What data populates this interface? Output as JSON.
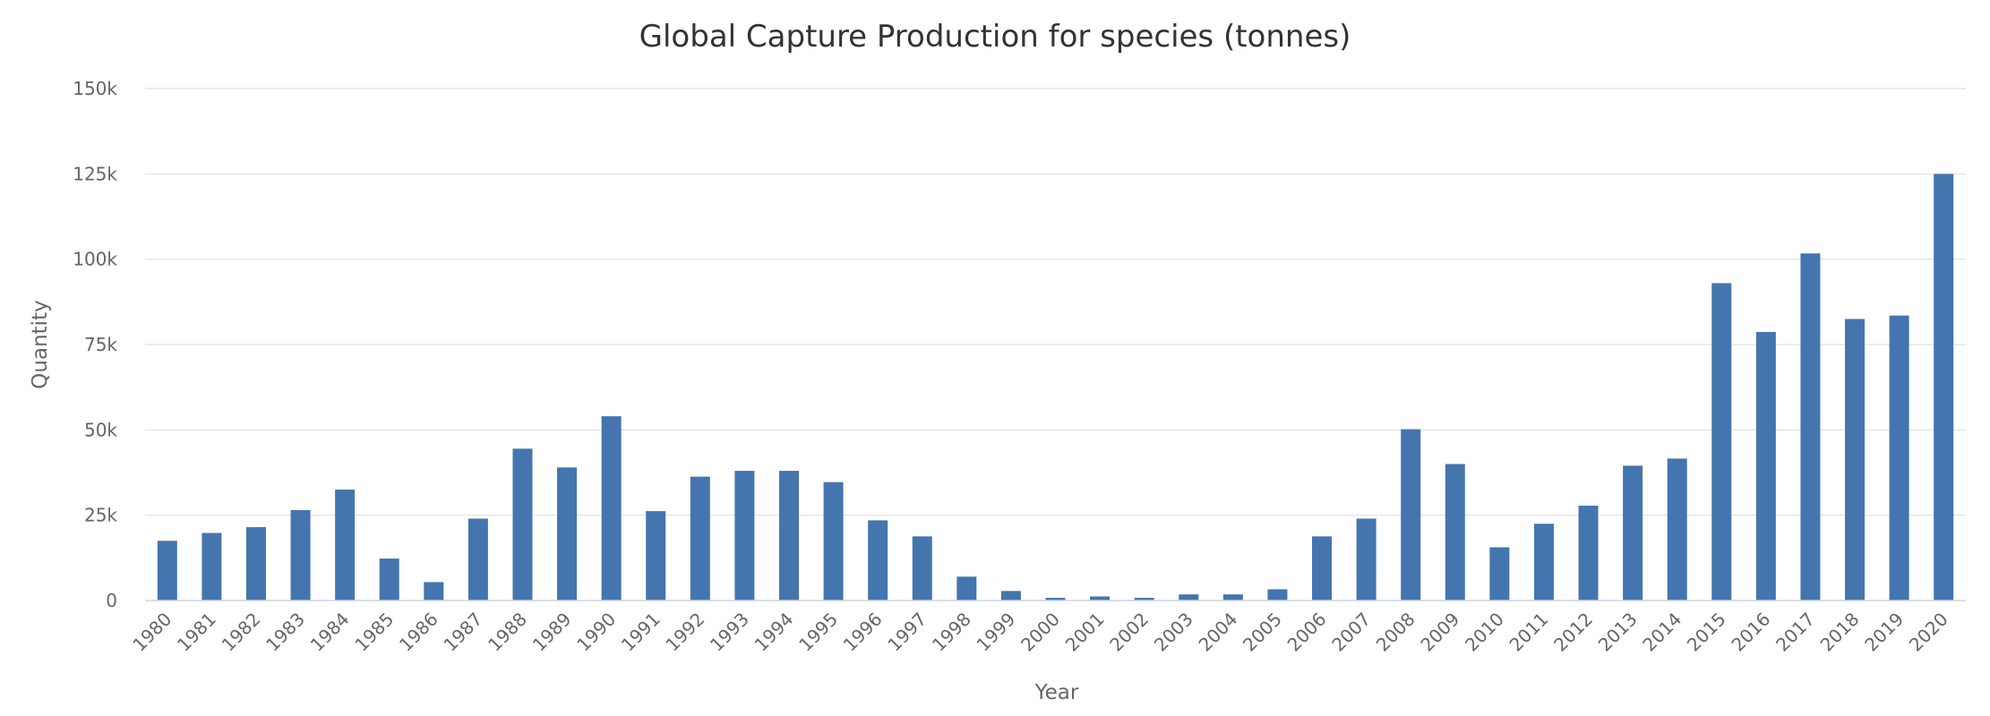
{
  "chart_data": {
    "type": "bar",
    "title": "Global Capture Production for species (tonnes)",
    "xlabel": "Year",
    "ylabel": "Quantity",
    "ylim": [
      0,
      150000
    ],
    "yticks": [
      {
        "value": 0,
        "label": "0"
      },
      {
        "value": 25000,
        "label": "25k"
      },
      {
        "value": 50000,
        "label": "50k"
      },
      {
        "value": 75000,
        "label": "75k"
      },
      {
        "value": 100000,
        "label": "100k"
      },
      {
        "value": 125000,
        "label": "125k"
      },
      {
        "value": 150000,
        "label": "150k"
      }
    ],
    "grid": true,
    "bar_color": "#4575ae",
    "categories": [
      "1980",
      "1981",
      "1982",
      "1983",
      "1984",
      "1985",
      "1986",
      "1987",
      "1988",
      "1989",
      "1990",
      "1991",
      "1992",
      "1993",
      "1994",
      "1995",
      "1996",
      "1997",
      "1998",
      "1999",
      "2000",
      "2001",
      "2002",
      "2003",
      "2004",
      "2005",
      "2006",
      "2007",
      "2008",
      "2009",
      "2010",
      "2011",
      "2012",
      "2013",
      "2014",
      "2015",
      "2016",
      "2017",
      "2018",
      "2019",
      "2020"
    ],
    "values": [
      17500,
      19800,
      21500,
      26500,
      32500,
      12300,
      5400,
      24000,
      44500,
      39000,
      54000,
      26200,
      36300,
      38000,
      38000,
      34700,
      23500,
      18800,
      7000,
      2800,
      800,
      1200,
      800,
      1800,
      1800,
      3300,
      18800,
      24000,
      50200,
      40000,
      15600,
      22500,
      27800,
      39500,
      41600,
      93000,
      78700,
      101700,
      82500,
      83500,
      125000
    ]
  }
}
